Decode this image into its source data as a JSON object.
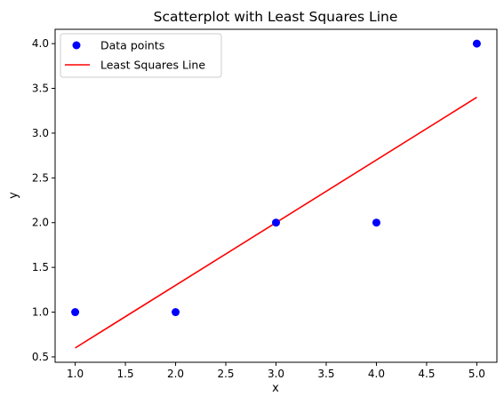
{
  "chart_data": {
    "type": "scatter",
    "title": "Scatterplot with Least Squares Line",
    "xlabel": "x",
    "ylabel": "y",
    "xlim": [
      0.8,
      5.2
    ],
    "ylim": [
      0.44,
      4.16
    ],
    "xticks": [
      1.0,
      1.5,
      2.0,
      2.5,
      3.0,
      3.5,
      4.0,
      4.5,
      5.0
    ],
    "yticks": [
      0.5,
      1.0,
      1.5,
      2.0,
      2.5,
      3.0,
      3.5,
      4.0
    ],
    "x_tick_labels": [
      "1.0",
      "1.5",
      "2.0",
      "2.5",
      "3.0",
      "3.5",
      "4.0",
      "4.5",
      "5.0"
    ],
    "y_tick_labels": [
      "0.5",
      "1.0",
      "1.5",
      "2.0",
      "2.5",
      "3.0",
      "3.5",
      "4.0"
    ],
    "grid": false,
    "legend_position": "top-left",
    "series": [
      {
        "name": "Data points",
        "kind": "scatter",
        "color": "#0000ff",
        "x": [
          1,
          2,
          3,
          4,
          5
        ],
        "y": [
          1,
          1,
          2,
          2,
          4
        ]
      },
      {
        "name": "Least Squares Line",
        "kind": "line",
        "color": "#ff0000",
        "x": [
          1,
          5
        ],
        "y": [
          0.6,
          3.4
        ]
      }
    ]
  }
}
